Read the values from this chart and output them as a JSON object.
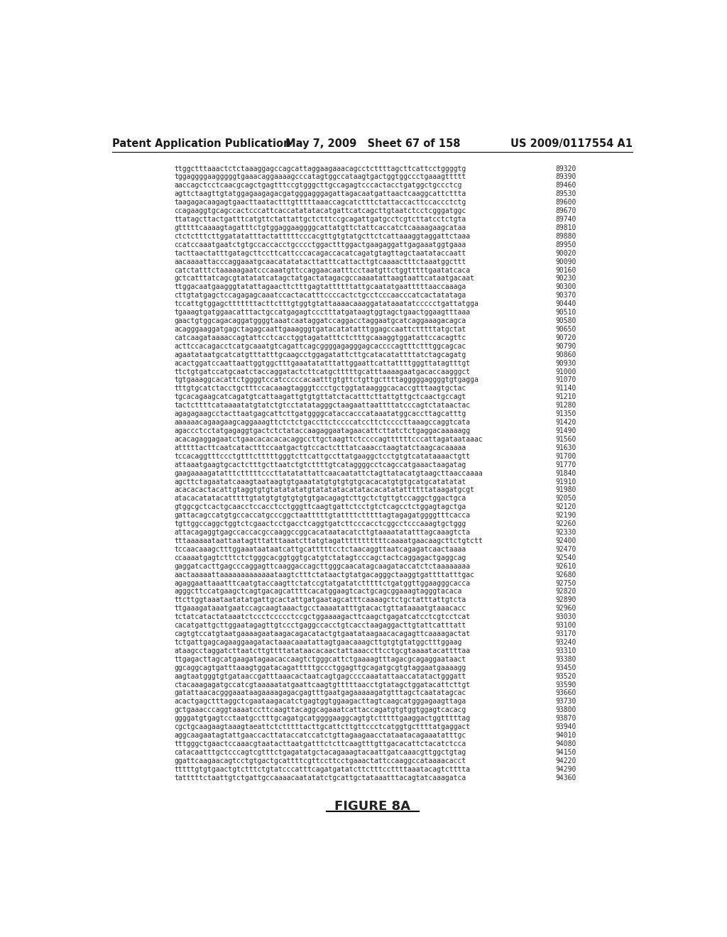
{
  "header_left": "Patent Application Publication",
  "header_center": "May 7, 2009   Sheet 67 of 158",
  "header_right": "US 2009/0117554 A1",
  "figure_label": "FIGURE 8A",
  "background_color": "#ffffff",
  "text_color": "#2a2a2a",
  "header_color": "#1a1a1a",
  "sequence_lines": [
    [
      "ttggctttaaactctctaaaggagccagcattaggaagaaacagcctcttttagcttcattcctggggtg",
      "89320"
    ],
    [
      "tggaggggaagggggtgaaacaggaaaagcccatagtggccataagtgactggtggccctgaaagttttt",
      "89390"
    ],
    [
      "aaccagctcctcaacgcagctgagtttccgtgggcttgccagagtcccactacctgatggctgccctcg",
      "89460"
    ],
    [
      "agttctaagttgtatggagaagagacgatgggagggagattagacaatgattaactcaaggcattcttta",
      "89530"
    ],
    [
      "taagagacaagagtgaacttaatactttgtttttaaaccagcatctttctattaccacttccaccctctg",
      "89600"
    ],
    [
      "ccagaaggtgcagccactcccattcaccatatatacatgattcatcagcttgtaatctcctcgggatggc",
      "89670"
    ],
    [
      "ttatagcttactgatttcatgttctattattgctctttccgcagattgatgcctcgtcttatcctctgta",
      "89740"
    ],
    [
      "gtttttcaaaagtagatttctgtggaggaaggggcattatgttctattcaccatctcaaaagaagcataa",
      "89810"
    ],
    [
      "ctctctttcttggatatatttactatttttcccacgttgtgtatgcttctcattaaaggtaggattctaaa",
      "89880"
    ],
    [
      "ccatccaaatgaatctgtgccaccacctgcccctggactttggactgaagaggattgagaaatggtgaaa",
      "89950"
    ],
    [
      "tacttaactatttgatagcttccttcattcccacagaccacatcagatgtagttagctaatataccaatt",
      "90020"
    ],
    [
      "aacaaaattacccaggaaatgcaacatatatacttatttcattacttgtcaaaactttctaaatggcttt",
      "90090"
    ],
    [
      "catctatttctaaaaagaatcccaaatgttccaggaacaatttcctaatgttctggtttttgaatatcaca",
      "90160"
    ],
    [
      "gctcatttatcagcgtatatatcatagctatgactatagacgccaaaatattaagtaattcataatgacaat",
      "90230"
    ],
    [
      "ttggacaatgaagggtatattagaacttctttgagtattttttattgcaatatgaatttttaaccaaaga",
      "90300"
    ],
    [
      "cttgtatgagctccagagagcaaatccactacatttccccactctgcctcccaacccatcactatataga",
      "90370"
    ],
    [
      "tccattgtggagctttttttacttctttgtggtgtattaaaacaaaggatataaatatccccctgattatgga",
      "90440"
    ],
    [
      "tgaaagtgatggaacatttactgccatgagagtccctttatgataagtggtagctgaactggaagtttaaa",
      "90510"
    ],
    [
      "gaactgtggcagacaggatggggtaaatcaataggatccaggacctaggaatgcatcaggaaagacagca",
      "90580"
    ],
    [
      "acagggaaggatgagctagagcaattgaaagggtgatacatatatttggagccaattctttttatgctat",
      "90650"
    ],
    [
      "catcaagataaaaccagtattcctcacctggtagatatttctctttgcaaaggtggatattccacagttc",
      "90720"
    ],
    [
      "acttccacagacctcatgcaaatgtcagattcagcggggagagggagcaccccagtttctttggcagcac",
      "90790"
    ],
    [
      "agaatataatgcatcatgtttatttgcaagcctggagatattcttgcatacatattttatctagcagatg",
      "90860"
    ],
    [
      "acactggatccaattaattggtggctttgaaatatatttattggaattcattattttgggttatagtttgt",
      "90930"
    ],
    [
      "ttctgtgatccatgcaatctaccaggatactcttcatgctttttgcatttaaaagaatgacaccaagggct",
      "91000"
    ],
    [
      "tgtgaaaggcacattctggggtccatcccccacaatttgtgttctgttgcttttagggggaggggtgtgagga",
      "91070"
    ],
    [
      "tttgtgcatctacctgctttccacaaagtagggtccctgctggtataagggcacaccgtttaagtgctac",
      "91140"
    ],
    [
      "tgcacagaagcatcagatgtcattaagattgtgtgttatctacatttcttattgttgctcaactgccagt",
      "91210"
    ],
    [
      "tactcttttcataaaatatgtatctgtcctatatagggctaagaattaattttatcccagtctataactac",
      "91280"
    ],
    [
      "agagagaagcctacttaatgagcattcttgatggggcataccacccataaatatggcaccttagcatttg",
      "91350"
    ],
    [
      "aaaaaacagaagaagcaggaaagttctctctgaccttctccccatccttctccccttaaagccaggtcata",
      "91420"
    ],
    [
      "agaccctcctatgagaggtgactctctataccaagaggaatagaacattcttatctctgaggacaaaaagg",
      "91490"
    ],
    [
      "acacagaggagaatctgaacacacacacaggccttgctaagttctccccagttttttcccattagataataaac",
      "91560"
    ],
    [
      "atttttacttcaatcatactttccaatgactgtccactctttatcaaacctaagtatctaagcacaaaaa",
      "91630"
    ],
    [
      "tccacaggtttccctgtttctttttgggtcttcattgccttatgaaggctcctgtgtcatataaaactgtt",
      "91700"
    ],
    [
      "attaaatgaagtgcactctttgcttaatctgtcttttgtcataggggcctcagccatgaaactaagatag",
      "91770"
    ],
    [
      "gaagaaaagatatttctttttcccttatatattattcaacaatattctagttatacatgtaagcttaaccaaaa",
      "91840"
    ],
    [
      "agcttctagaatatcaaagtaataagtgtgaaatatgtgtgtgtgcacacatgtgtgcatgcatatatat",
      "91910"
    ],
    [
      "acacacactacattgtaggtgtgtatatatatgtatatatacatatacacatatattttttataagatgcgt",
      "91980"
    ],
    [
      "atacacatatacatttttgtatgtgtgtgtgtgtgacagagtcttgctctgttgtccaggctggactgca",
      "92050"
    ],
    [
      "gtggcgctcactgcaacctccacctcctgggttcaagtgattctcctgtctcagcctctggagtagctga",
      "92120"
    ],
    [
      "gattacagccatgtgccaccatgcccggctaatttttgtattttctttttagtagagatggggtttcacca",
      "92190"
    ],
    [
      "tgttggccaggctggtctcgaactcctgacctcaggtgatcttcccacctcggcctcccaaagtgctggg",
      "92260"
    ],
    [
      "attacagaggtgagccaccacgccaaggccggcacataatacatcttgtaaaatatatttagcaaagtcta",
      "92330"
    ],
    [
      "tttaaaaaataattaatagtttatttaaatcttatgtagatttttttttttcaaaatgaacaagcttctgtctt",
      "92400"
    ],
    [
      "tccaacaaagctttggaaataataatcattgcatttttcctctaacaggttaatcagagatcaactaaaa",
      "92470"
    ],
    [
      "ccaaaatgagtctttctctgggcacggtggtgcatgtctatagtcccagctactcaggagactgaggcag",
      "92540"
    ],
    [
      "gaggatcacttgagcccaggagttcaaggaccagcttgggcaacatagcaagataccatctctaaaaaaaa",
      "92610"
    ],
    [
      "aactaaaaattaaaaaaaaaaaaataagtctttctataactgtatgacagggctaaggtgattttatttgac",
      "92680"
    ],
    [
      "agaggaattaaatttcaatgtaccaagttctatccgtatgatatctttttctgatggttggaagggcacca",
      "92750"
    ],
    [
      "agggcttccatgaagctcagtgacagcattttcacatggaagtcactgcagcggaaagtagggtacaca",
      "92820"
    ],
    [
      "ttcttggtaaataatatatgattgcactattgatgaatagcatttcaaaagctctgctatttattgtcta",
      "92890"
    ],
    [
      "ttgaaagataaatgaatccagcaagtaaactgcctaaaatatttgtacactgttataaaatgtaaacacc",
      "92960"
    ],
    [
      "tctatcatactataaatctccctccccctccgctggaaaagacttcaagctgagatcatcctcgtcctcat",
      "93030"
    ],
    [
      "cacatgattgcttggaatagagttgtccctgaggccacctgtcacctaagaggacttgtattcatttatt",
      "93100"
    ],
    [
      "cagtgtccatgtaatgaaaagaataagacagacatactgtgaatataagaacacagagttcaaaagactat",
      "93170"
    ],
    [
      "tctgattgagcagaaggaagatactaaacaaatattagtgaacaaagcttgtgtgtatggctttggaag",
      "93240"
    ],
    [
      "ataagcctaggatcttaatcttgttttatataacacaactattaaaccttcctgcgtaaaatacattttaa",
      "93310"
    ],
    [
      "ttgagacttagcatgaagatagaacaccaagtctgggcattctgaaaagtttagacgcagaggaataact",
      "93380"
    ],
    [
      "ggcaggcagtgatttaaagtggatacagatttttgccctggagttgcagatgcgtgtaggaatgaaaagg",
      "93450"
    ],
    [
      "aagtaatgggtgtgataaccgatttaaacactaatcagtgagccccaaatattaaccatatactgggatt",
      "93520"
    ],
    [
      "ctacaaagagatgccatcgtaaaaatatgaattcaagtgtttttaacctgtatagctggatacattcttgt",
      "93590"
    ],
    [
      "gatattaacacgggaaataagaaaagagacgagtttgaatgagaaaaagatgtttagctcaatatagcac",
      "93660"
    ],
    [
      "acactgagctttaggctcgaataagacatctgagtggtggaagacttagtcaagcatgggagaagttaga",
      "93730"
    ],
    [
      "gctgaaacccaggtaaaatccttcaagttacaggcagaaatcattaccagatgtgtggtggagtcacacg",
      "93800"
    ],
    [
      "ggggatgtgagtcctaatgcctttgcagatgcatggggaaggcagtgtctttttgaaggactggtttttag",
      "93870"
    ],
    [
      "cgctgcaagaagtaaagtaeattctctttttacttgcattcttgttccctcatggtgcttttatgaggact",
      "93940"
    ],
    [
      "aggcaagaatagtattgaaccacttataccatccatctgttagaagaacctataatacagaaatatttgc",
      "94010"
    ],
    [
      "tttgggctgaactccaaacgtaatacttaatgatttctcttcaagtttgttgacacattctacatctcca",
      "94080"
    ],
    [
      "catacaatttgctcccagtcgtttctgagatatgctacagaaagtacaattgatcaaacgttggctgtag",
      "94150"
    ],
    [
      "ggattcaagaacagtcctgtgactgcattttcgttccttcctgaaactattccaaggccataaaacacct",
      "94220"
    ],
    [
      "tttttgtgtgaactgtctttctgtatcccatttcagatgatatcttctttccttttaaatacagtctttta",
      "94290"
    ],
    [
      "tatttttctaattgtctgattgccaaaacaatatatctgcattgctataaatttacagtatcaaagatca",
      "94360"
    ]
  ]
}
